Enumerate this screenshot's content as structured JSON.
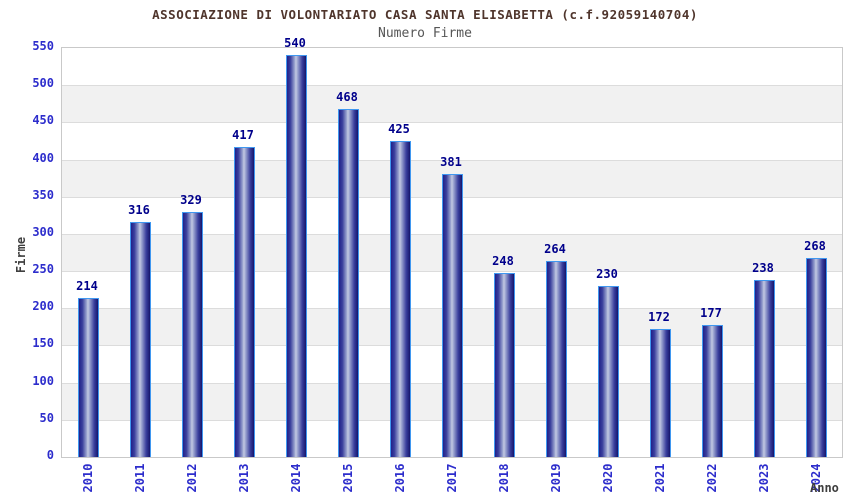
{
  "header": {
    "title": "ASSOCIAZIONE DI VOLONTARIATO CASA SANTA ELISABETTA (c.f.92059140704)",
    "subtitle": "Numero Firme"
  },
  "chart_data": {
    "type": "bar",
    "title": "ASSOCIAZIONE DI VOLONTARIATO CASA SANTA ELISABETTA (c.f.92059140704)",
    "subtitle": "Numero Firme",
    "categories": [
      "2010",
      "2011",
      "2012",
      "2013",
      "2014",
      "2015",
      "2016",
      "2017",
      "2018",
      "2019",
      "2020",
      "2021",
      "2022",
      "2023",
      "2024"
    ],
    "values": [
      214,
      316,
      329,
      417,
      540,
      468,
      425,
      381,
      248,
      264,
      230,
      172,
      177,
      238,
      268
    ],
    "xlabel": "Anno",
    "ylabel": "Firme",
    "ylim": [
      0,
      550
    ],
    "ytick_step": 50,
    "grid": "horizontal gridlines with alternating white/gray bands every 50 units",
    "legend": "none",
    "colors": {
      "bar_dark": "#21218a",
      "bar_light": "#c3c9e3",
      "bar_border": "#3f97f0",
      "value_label": "#00008b",
      "tick_label": "#2d2dcc",
      "title": "#4f352c",
      "subtitle": "#565656",
      "axis_label": "#3f3f3f",
      "band_gray": "#f1f1f1",
      "gridline": "#dcdcdc",
      "plot_border": "#c9c9c9"
    }
  }
}
